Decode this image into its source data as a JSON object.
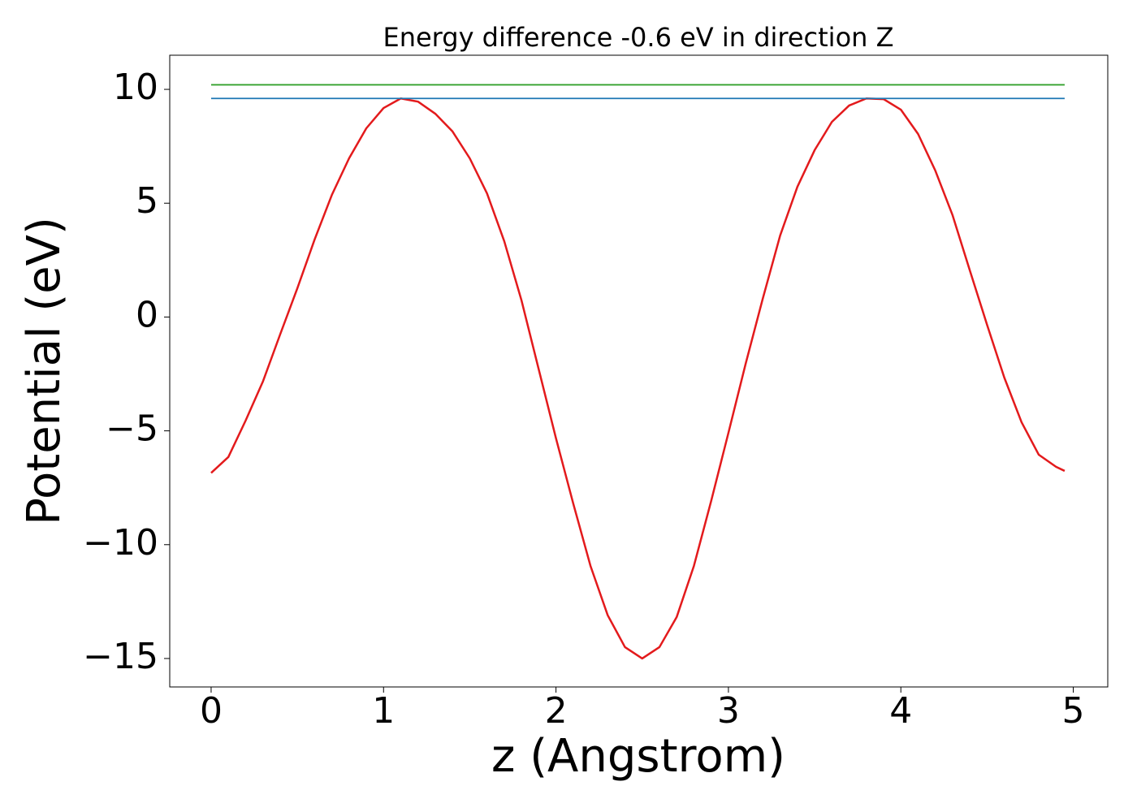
{
  "chart_data": {
    "type": "line",
    "title": "Energy difference -0.6 eV in direction Z",
    "x_label": "z (Angstrom)",
    "y_label": "Potential (eV)",
    "xlim": [
      -0.24,
      5.2
    ],
    "ylim": [
      -16.25,
      11.5
    ],
    "xticks": [
      0,
      1,
      2,
      3,
      4,
      5
    ],
    "yticks": [
      {
        "value": -15,
        "label": "−15"
      },
      {
        "value": -10,
        "label": "−10"
      },
      {
        "value": -5,
        "label": "−5"
      },
      0,
      5,
      10
    ],
    "series": [
      {
        "color": "#e31a1c",
        "x": [
          0,
          0.1,
          0.2,
          0.3,
          0.4,
          0.5,
          0.6,
          0.7,
          0.8,
          0.9,
          1.0,
          1.1,
          1.2,
          1.3,
          1.4,
          1.5,
          1.6,
          1.7,
          1.8,
          1.9,
          2.0,
          2.1,
          2.2,
          2.3,
          2.4,
          2.5,
          2.6,
          2.7,
          2.8,
          2.9,
          3.0,
          3.1,
          3.2,
          3.3,
          3.4,
          3.5,
          3.6,
          3.7,
          3.8,
          3.9,
          4.0,
          4.1,
          4.2,
          4.3,
          4.4,
          4.5,
          4.6,
          4.7,
          4.8,
          4.9,
          4.95
        ],
        "values": [
          -6.85,
          -6.15,
          -4.55,
          -2.84,
          -0.77,
          1.26,
          3.4,
          5.36,
          6.97,
          8.29,
          9.18,
          9.6,
          9.46,
          8.93,
          8.15,
          6.97,
          5.43,
          3.33,
          0.73,
          -2.3,
          -5.33,
          -8.19,
          -10.93,
          -13.1,
          -14.5,
          -15.0,
          -14.5,
          -13.18,
          -10.93,
          -8.08,
          -5.09,
          -2.05,
          0.83,
          3.58,
          5.72,
          7.33,
          8.57,
          9.29,
          9.6,
          9.57,
          9.11,
          8.04,
          6.43,
          4.47,
          2.05,
          -0.34,
          -2.66,
          -4.62,
          -6.05,
          -6.58,
          -6.76
        ]
      },
      {
        "color": "#1f78b4",
        "x": [
          0,
          4.95
        ],
        "values": [
          9.6,
          9.6
        ]
      },
      {
        "color": "#33a02c",
        "x": [
          0,
          4.95
        ],
        "values": [
          10.2,
          10.2
        ]
      }
    ]
  }
}
